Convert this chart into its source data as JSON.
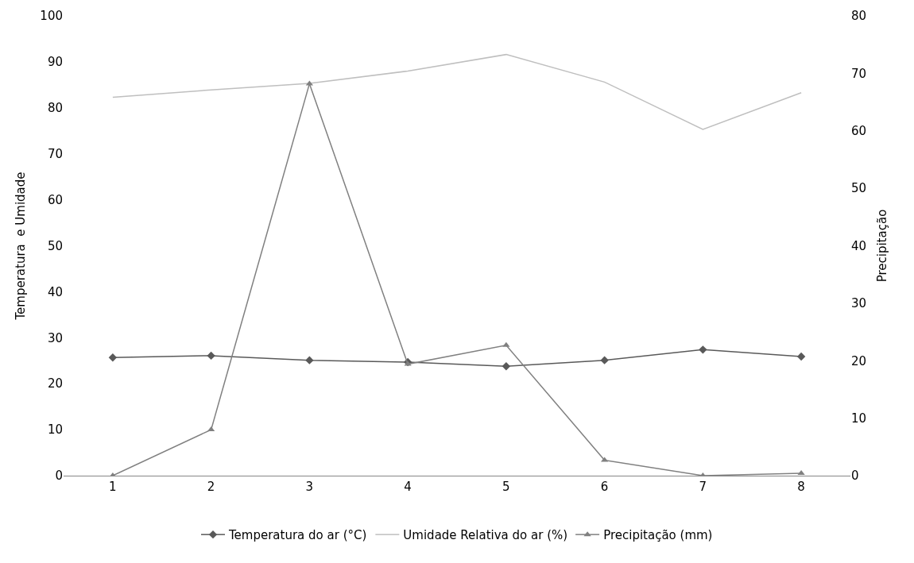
{
  "chart_data": {
    "type": "line",
    "xlabel": null,
    "ylabel": "Temperatura  e Umidade",
    "y2label": "Precipitação",
    "x": [
      1,
      2,
      3,
      4,
      5,
      6,
      7,
      8
    ],
    "xlim": [
      0.5,
      8.5
    ],
    "xticks": [
      1,
      2,
      3,
      4,
      5,
      6,
      7,
      8
    ],
    "ylim": [
      0,
      100
    ],
    "yticks": [
      0,
      10,
      20,
      30,
      40,
      50,
      60,
      70,
      80,
      90,
      100
    ],
    "y2lim": [
      0,
      80
    ],
    "y2ticks": [
      0,
      10,
      20,
      30,
      40,
      50,
      60,
      70,
      80
    ],
    "legend": "bottom",
    "series": [
      {
        "name": "Temperatura do ar (°C)",
        "color": "#595959",
        "marker": "diamond",
        "values": [
          25.7,
          26.1,
          25.1,
          24.7,
          23.8,
          25.1,
          27.4,
          25.9
        ]
      },
      {
        "name": "Umidade Relativa do ar (%)",
        "color": "#bfbfbf",
        "marker": "none",
        "values": [
          82.3,
          83.9,
          85.3,
          88.0,
          91.6,
          85.6,
          75.3,
          83.3
        ]
      },
      {
        "name": "Precipitação (mm)",
        "color": "#808080",
        "marker": "triangle",
        "axis": "y2",
        "values": [
          0,
          8.0,
          68.2,
          19.4,
          22.7,
          2.7,
          0,
          0.4
        ]
      }
    ]
  }
}
